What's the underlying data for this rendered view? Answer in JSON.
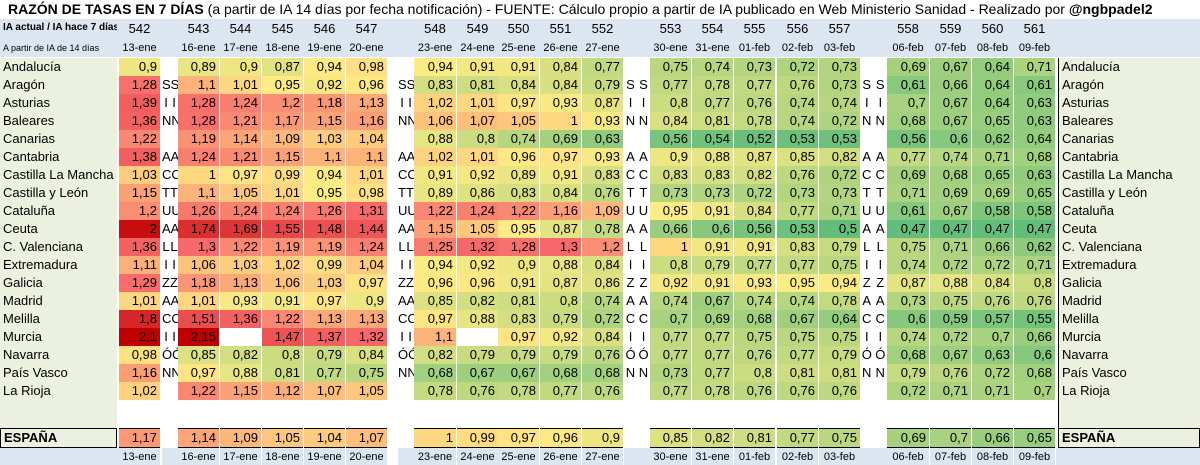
{
  "header": {
    "title_bold": "RAZÓN DE TASAS EN 7 DÍAS",
    "title_rest": " (a partir de IA 14 días por fecha notificación) - FUENTE: Cálculo propio a partir de IA publicado en Web Ministerio Sanidad - Realizado por ",
    "author": "@ngbpadel2",
    "row_label": "IA actual / IA hace 7 días",
    "sub_label": "A partir de IA de 14 días"
  },
  "columns": [
    {
      "num": "542",
      "date": "13-ene"
    },
    {
      "num": "543",
      "date": "16-ene"
    },
    {
      "num": "544",
      "date": "17-ene"
    },
    {
      "num": "545",
      "date": "18-ene"
    },
    {
      "num": "546",
      "date": "19-ene"
    },
    {
      "num": "547",
      "date": "20-ene"
    },
    {
      "num": "548",
      "date": "23-ene"
    },
    {
      "num": "549",
      "date": "24-ene"
    },
    {
      "num": "550",
      "date": "25-ene"
    },
    {
      "num": "551",
      "date": "26-ene"
    },
    {
      "num": "552",
      "date": "27-ene"
    },
    {
      "num": "553",
      "date": "30-ene"
    },
    {
      "num": "554",
      "date": "31-ene"
    },
    {
      "num": "555",
      "date": "01-feb"
    },
    {
      "num": "556",
      "date": "02-feb"
    },
    {
      "num": "557",
      "date": "03-feb"
    },
    {
      "num": "558",
      "date": "06-feb"
    },
    {
      "num": "559",
      "date": "07-feb"
    },
    {
      "num": "560",
      "date": "08-feb"
    },
    {
      "num": "561",
      "date": "09-feb"
    }
  ],
  "rows": [
    {
      "name": "Andalucía",
      "values": [
        "0,9",
        "0,89",
        "0,9",
        "0,87",
        "0,94",
        "0,98",
        "0,94",
        "0,91",
        "0,91",
        "0,84",
        "0,77",
        "0,75",
        "0,74",
        "0,73",
        "0,72",
        "0,73",
        "0,69",
        "0,67",
        "0,64",
        "0,71"
      ],
      "letters": [
        "",
        "",
        "",
        ""
      ]
    },
    {
      "name": "Aragón",
      "values": [
        "1,28",
        "1,1",
        "1,01",
        "0,95",
        "0,92",
        "0,96",
        "0,83",
        "0,81",
        "0,84",
        "0,84",
        "0,79",
        "0,77",
        "0,78",
        "0,77",
        "0,76",
        "0,73",
        "0,61",
        "0,66",
        "0,64",
        "0,61"
      ],
      "letters": [
        "S",
        "S",
        "S",
        "S"
      ]
    },
    {
      "name": "Asturias",
      "values": [
        "1,39",
        "1,28",
        "1,24",
        "1,2",
        "1,18",
        "1,13",
        "1,02",
        "1,01",
        "0,97",
        "0,93",
        "0,87",
        "0,8",
        "0,77",
        "0,76",
        "0,74",
        "0,74",
        "0,7",
        "0,67",
        "0,64",
        "0,63"
      ],
      "letters": [
        "I",
        "I",
        "I",
        "I"
      ]
    },
    {
      "name": "Baleares",
      "values": [
        "1,36",
        "1,28",
        "1,21",
        "1,17",
        "1,15",
        "1,16",
        "1,06",
        "1,07",
        "1,05",
        "1",
        "0,93",
        "0,84",
        "0,81",
        "0,78",
        "0,74",
        "0,72",
        "0,68",
        "0,67",
        "0,65",
        "0,63"
      ],
      "letters": [
        "N",
        "N",
        "N",
        "N"
      ]
    },
    {
      "name": "Canarias",
      "values": [
        "1,22",
        "1,19",
        "1,14",
        "1,09",
        "1,03",
        "1,04",
        "0,88",
        "0,8",
        "0,74",
        "0,69",
        "0,63",
        "0,56",
        "0,54",
        "0,52",
        "0,53",
        "0,53",
        "0,56",
        "0,6",
        "0,62",
        "0,64"
      ],
      "letters": [
        "",
        "",
        "",
        ""
      ]
    },
    {
      "name": "Cantabria",
      "values": [
        "1,38",
        "1,24",
        "1,21",
        "1,15",
        "1,1",
        "1,1",
        "1,02",
        "1,01",
        "0,96",
        "0,97",
        "0,93",
        "0,9",
        "0,88",
        "0,87",
        "0,85",
        "0,82",
        "0,77",
        "0,74",
        "0,71",
        "0,68"
      ],
      "letters": [
        "A",
        "A",
        "A",
        "A"
      ]
    },
    {
      "name": "Castilla La Mancha",
      "values": [
        "1,03",
        "1",
        "0,97",
        "0,99",
        "0,94",
        "1,01",
        "0,91",
        "0,92",
        "0,89",
        "0,91",
        "0,83",
        "0,83",
        "0,83",
        "0,82",
        "0,76",
        "0,72",
        "0,69",
        "0,68",
        "0,65",
        "0,63"
      ],
      "letters": [
        "C",
        "C",
        "C",
        "C"
      ]
    },
    {
      "name": "Castilla y León",
      "values": [
        "1,15",
        "1,1",
        "1,05",
        "1,01",
        "0,95",
        "0,98",
        "0,89",
        "0,86",
        "0,83",
        "0,84",
        "0,76",
        "0,73",
        "0,73",
        "0,72",
        "0,73",
        "0,73",
        "0,71",
        "0,69",
        "0,69",
        "0,65"
      ],
      "letters": [
        "T",
        "T",
        "T",
        "T"
      ]
    },
    {
      "name": "Cataluña",
      "values": [
        "1,2",
        "1,26",
        "1,24",
        "1,24",
        "1,26",
        "1,31",
        "1,22",
        "1,24",
        "1,22",
        "1,16",
        "1,09",
        "0,95",
        "0,91",
        "0,84",
        "0,77",
        "0,71",
        "0,61",
        "0,67",
        "0,58",
        "0,58"
      ],
      "letters": [
        "U",
        "U",
        "U",
        "U"
      ]
    },
    {
      "name": "Ceuta",
      "values": [
        "2",
        "1,74",
        "1,69",
        "1,55",
        "1,48",
        "1,44",
        "1,15",
        "1,05",
        "0,95",
        "0,87",
        "0,78",
        "0,66",
        "0,6",
        "0,56",
        "0,53",
        "0,5",
        "0,47",
        "0,47",
        "0,47",
        "0,47"
      ],
      "letters": [
        "A",
        "A",
        "A",
        "A"
      ]
    },
    {
      "name": "C. Valenciana",
      "values": [
        "1,36",
        "1,3",
        "1,22",
        "1,19",
        "1,19",
        "1,24",
        "1,25",
        "1,32",
        "1,28",
        "1,3",
        "1,2",
        "1",
        "0,91",
        "0,91",
        "0,83",
        "0,79",
        "0,75",
        "0,71",
        "0,66",
        "0,62"
      ],
      "letters": [
        "L",
        "L",
        "L",
        "L"
      ]
    },
    {
      "name": "Extremadura",
      "values": [
        "1,11",
        "1,06",
        "1,03",
        "1,02",
        "0,99",
        "1,04",
        "0,94",
        "0,92",
        "0,9",
        "0,88",
        "0,84",
        "0,8",
        "0,79",
        "0,77",
        "0,77",
        "0,75",
        "0,74",
        "0,72",
        "0,72",
        "0,71"
      ],
      "letters": [
        "I",
        "I",
        "I",
        "I"
      ]
    },
    {
      "name": "Galicia",
      "values": [
        "1,29",
        "1,18",
        "1,13",
        "1,06",
        "1,03",
        "0,97",
        "0,96",
        "0,96",
        "0,91",
        "0,87",
        "0,86",
        "0,92",
        "0,91",
        "0,93",
        "0,95",
        "0,94",
        "0,87",
        "0,88",
        "0,84",
        "0,8"
      ],
      "letters": [
        "Z",
        "Z",
        "Z",
        "Z"
      ]
    },
    {
      "name": "Madrid",
      "values": [
        "1,01",
        "1,01",
        "0,93",
        "0,91",
        "0,97",
        "0,9",
        "0,85",
        "0,82",
        "0,81",
        "0,8",
        "0,74",
        "0,74",
        "0,67",
        "0,74",
        "0,74",
        "0,78",
        "0,73",
        "0,75",
        "0,76",
        "0,76"
      ],
      "letters": [
        "A",
        "A",
        "A",
        "A"
      ]
    },
    {
      "name": "Melilla",
      "values": [
        "1,8",
        "1,51",
        "1,36",
        "1,22",
        "1,13",
        "1,13",
        "0,97",
        "0,88",
        "0,83",
        "0,79",
        "0,72",
        "0,7",
        "0,69",
        "0,68",
        "0,67",
        "0,64",
        "0,6",
        "0,59",
        "0,57",
        "0,55"
      ],
      "letters": [
        "C",
        "C",
        "C",
        "C"
      ]
    },
    {
      "name": "Murcia",
      "values": [
        "2,1",
        "2,15",
        "",
        "1,47",
        "1,37",
        "1,32",
        "1,1",
        "",
        "0,97",
        "0,92",
        "0,84",
        "0,77",
        "0,77",
        "0,75",
        "0,75",
        "0,75",
        "0,74",
        "0,72",
        "0,7",
        "0,66"
      ],
      "letters": [
        "I",
        "I",
        "I",
        "I"
      ]
    },
    {
      "name": "Navarra",
      "values": [
        "0,98",
        "0,85",
        "0,82",
        "0,8",
        "0,79",
        "0,84",
        "0,82",
        "0,79",
        "0,79",
        "0,79",
        "0,76",
        "0,77",
        "0,77",
        "0,76",
        "0,77",
        "0,79",
        "0,68",
        "0,67",
        "0,63",
        "0,6"
      ],
      "letters": [
        "Ó",
        "Ó",
        "Ó",
        "Ó"
      ]
    },
    {
      "name": "País Vasco",
      "values": [
        "1,16",
        "0,97",
        "0,88",
        "0,81",
        "0,77",
        "0,75",
        "0,68",
        "0,67",
        "0,67",
        "0,68",
        "0,68",
        "0,73",
        "0,77",
        "0,8",
        "0,81",
        "0,81",
        "0,79",
        "0,76",
        "0,72",
        "0,68"
      ],
      "letters": [
        "N",
        "N",
        "N",
        "N"
      ]
    },
    {
      "name": "La Rioja",
      "values": [
        "1,02",
        "1,22",
        "1,15",
        "1,12",
        "1,07",
        "1,05",
        "0,78",
        "0,76",
        "0,78",
        "0,77",
        "0,76",
        "0,77",
        "0,78",
        "0,76",
        "0,76",
        "0,76",
        "0,72",
        "0,71",
        "0,71",
        "0,7"
      ],
      "letters": [
        "",
        "",
        "",
        ""
      ]
    }
  ],
  "total": {
    "name": "ESPAÑA",
    "values": [
      "1,17",
      "1,14",
      "1,09",
      "1,05",
      "1,04",
      "1,07",
      "1",
      "0,99",
      "0,97",
      "0,96",
      "0,9",
      "0,85",
      "0,82",
      "0,81",
      "0,77",
      "0,75",
      "0,69",
      "0,7",
      "0,66",
      "0,65"
    ]
  }
}
